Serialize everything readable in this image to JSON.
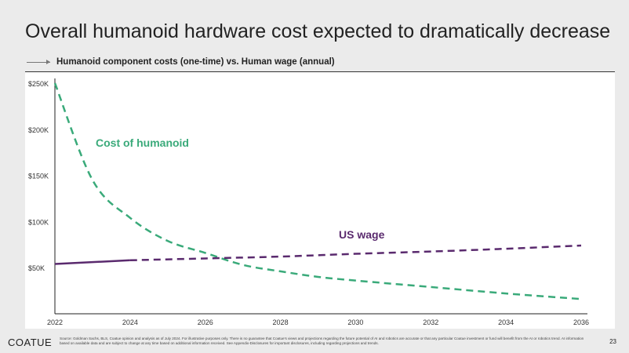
{
  "title": "Overall humanoid hardware cost expected to dramatically decrease",
  "subtitle": "Humanoid component costs (one-time) vs. Human wage (annual)",
  "footer": {
    "logo": "COATUE",
    "note": "Source: Goldman Sachs, BLS, Coatue opinion and analysis as of July 2024. For illustrative purposes only. There is no guarantee that Coatue's views and projections regarding the future potential of AI and robotics are accurate or that any particular Coatue investment or fund will benefit from the AI or robotics trend. AI information based on available data and are subject to change at any time based on additional information received. See Appendix-Disclosures for important disclosures, including regarding projections and trends.",
    "page": "23"
  },
  "chart_data": {
    "type": "line",
    "title": "Humanoid component costs (one-time) vs. Human wage (annual)",
    "xlabel": "",
    "ylabel": "",
    "xlim": [
      2022,
      2036
    ],
    "ylim": [
      0,
      250000
    ],
    "x_ticks": [
      "2022",
      "2024",
      "2026",
      "2028",
      "2030",
      "2032",
      "2034",
      "2036"
    ],
    "y_ticks": [
      {
        "v": 50000,
        "label": "$50K"
      },
      {
        "v": 100000,
        "label": "$100K"
      },
      {
        "v": 150000,
        "label": "$150K"
      },
      {
        "v": 200000,
        "label": "$200K"
      },
      {
        "v": 250000,
        "label": "$250K"
      }
    ],
    "series": [
      {
        "name": "Cost of humanoid",
        "color": "#3aaa7a",
        "style": "dashed",
        "x": [
          2022,
          2023,
          2024,
          2025,
          2026,
          2027,
          2028,
          2029,
          2030,
          2032,
          2034,
          2036
        ],
        "values": [
          250000,
          145000,
          104000,
          79000,
          66000,
          53000,
          46000,
          40000,
          36000,
          29000,
          22000,
          16000
        ]
      },
      {
        "name": "US wage",
        "color": "#5a2a6e",
        "style": "solid-then-dashed",
        "solid_until": 2024,
        "x": [
          2022,
          2024,
          2026,
          2028,
          2030,
          2032,
          2034,
          2036
        ],
        "values": [
          54000,
          58000,
          60000,
          62000,
          65000,
          67500,
          70500,
          74000
        ]
      }
    ]
  }
}
